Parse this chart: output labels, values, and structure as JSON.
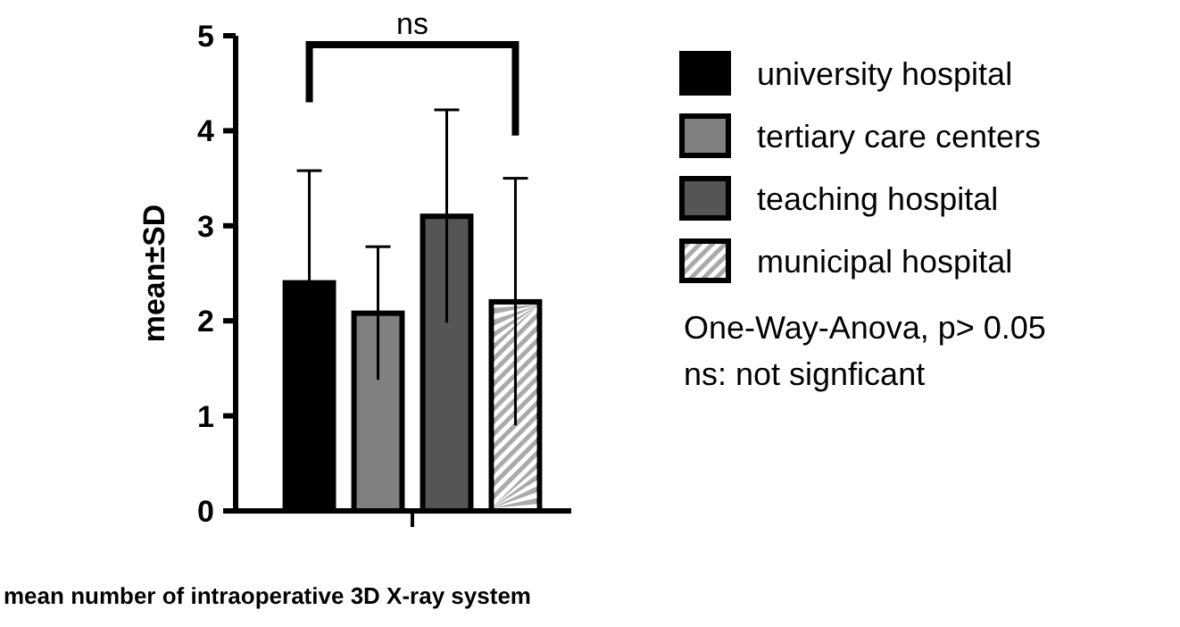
{
  "chart_data": {
    "type": "bar",
    "ylabel": "mean±SD",
    "xlabel": "mean number of intraoperative 3D X-ray system",
    "categories": [
      null
    ],
    "series": [
      {
        "name": "university hospital",
        "color": "#000000",
        "values": [
          2.4
        ],
        "errors": [
          1.18
        ]
      },
      {
        "name": "tertiary care centers",
        "color": "#808080",
        "values": [
          2.08
        ],
        "errors": [
          0.7
        ]
      },
      {
        "name": "teaching hospital",
        "color": "#555555",
        "values": [
          3.1
        ],
        "errors": [
          1.12
        ]
      },
      {
        "name": "municipal hospital",
        "color": "#aaaaaa",
        "values": [
          2.2
        ],
        "errors": [
          1.3
        ]
      }
    ],
    "ylim": [
      0,
      5
    ],
    "yticks": [
      0,
      1,
      2,
      3,
      4,
      5
    ],
    "grid": false,
    "legend": "right",
    "annotations": [
      "ns",
      "One-Way-Anova, p> 0.05",
      "ns: not signficant"
    ]
  }
}
